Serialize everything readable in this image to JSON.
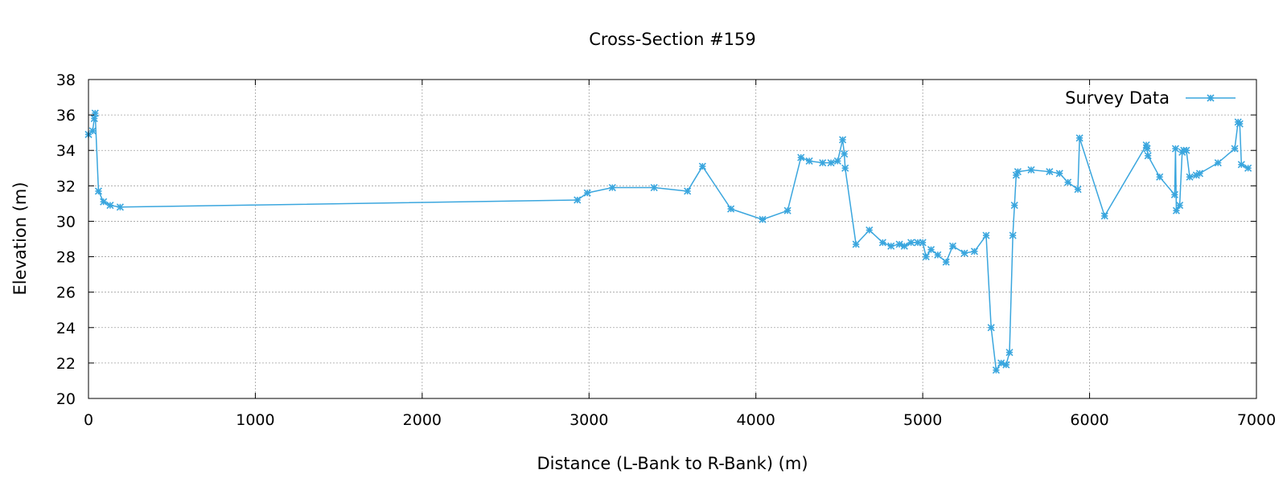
{
  "chart_data": {
    "type": "line",
    "title": "Cross-Section #159",
    "xlabel": "Distance (L-Bank to R-Bank) (m)",
    "ylabel": "Elevation (m)",
    "xlim": [
      0,
      7000
    ],
    "ylim": [
      20,
      38
    ],
    "xticks": [
      0,
      1000,
      2000,
      3000,
      4000,
      5000,
      6000,
      7000
    ],
    "yticks": [
      20,
      22,
      24,
      26,
      28,
      30,
      32,
      34,
      36,
      38
    ],
    "grid": true,
    "legend_position": "top-right",
    "series": [
      {
        "name": "Survey Data",
        "color": "#3aa6de",
        "marker": "x",
        "x": [
          0,
          25,
          35,
          40,
          60,
          90,
          130,
          190,
          2930,
          2990,
          3140,
          3390,
          3590,
          3680,
          3850,
          4040,
          4190,
          4270,
          4320,
          4400,
          4450,
          4490,
          4520,
          4530,
          4535,
          4600,
          4680,
          4760,
          4810,
          4860,
          4890,
          4930,
          4970,
          5000,
          5020,
          5050,
          5090,
          5140,
          5180,
          5250,
          5310,
          5380,
          5410,
          5440,
          5470,
          5500,
          5520,
          5540,
          5550,
          5560,
          5570,
          5650,
          5760,
          5820,
          5870,
          5930,
          5940,
          6090,
          6340,
          6345,
          6350,
          6420,
          6510,
          6515,
          6520,
          6540,
          6555,
          6565,
          6580,
          6600,
          6640,
          6660,
          6770,
          6870,
          6890,
          6900,
          6910,
          6950
        ],
        "y": [
          34.9,
          35.1,
          35.8,
          36.1,
          31.7,
          31.1,
          30.9,
          30.8,
          31.2,
          31.6,
          31.9,
          31.9,
          31.7,
          33.1,
          30.7,
          30.1,
          30.6,
          33.6,
          33.4,
          33.3,
          33.3,
          33.4,
          34.6,
          33.8,
          33.0,
          28.7,
          29.5,
          28.8,
          28.6,
          28.7,
          28.6,
          28.8,
          28.8,
          28.8,
          28.0,
          28.4,
          28.1,
          27.7,
          28.6,
          28.2,
          28.3,
          29.2,
          24.0,
          21.6,
          22.0,
          21.9,
          22.6,
          29.2,
          30.9,
          32.6,
          32.8,
          32.9,
          32.8,
          32.7,
          32.2,
          31.8,
          34.7,
          30.3,
          34.3,
          34.1,
          33.7,
          32.5,
          31.5,
          34.1,
          30.6,
          30.9,
          33.9,
          34.0,
          34.0,
          32.5,
          32.6,
          32.7,
          33.3,
          34.1,
          35.6,
          35.5,
          33.2,
          33.0
        ]
      }
    ]
  }
}
